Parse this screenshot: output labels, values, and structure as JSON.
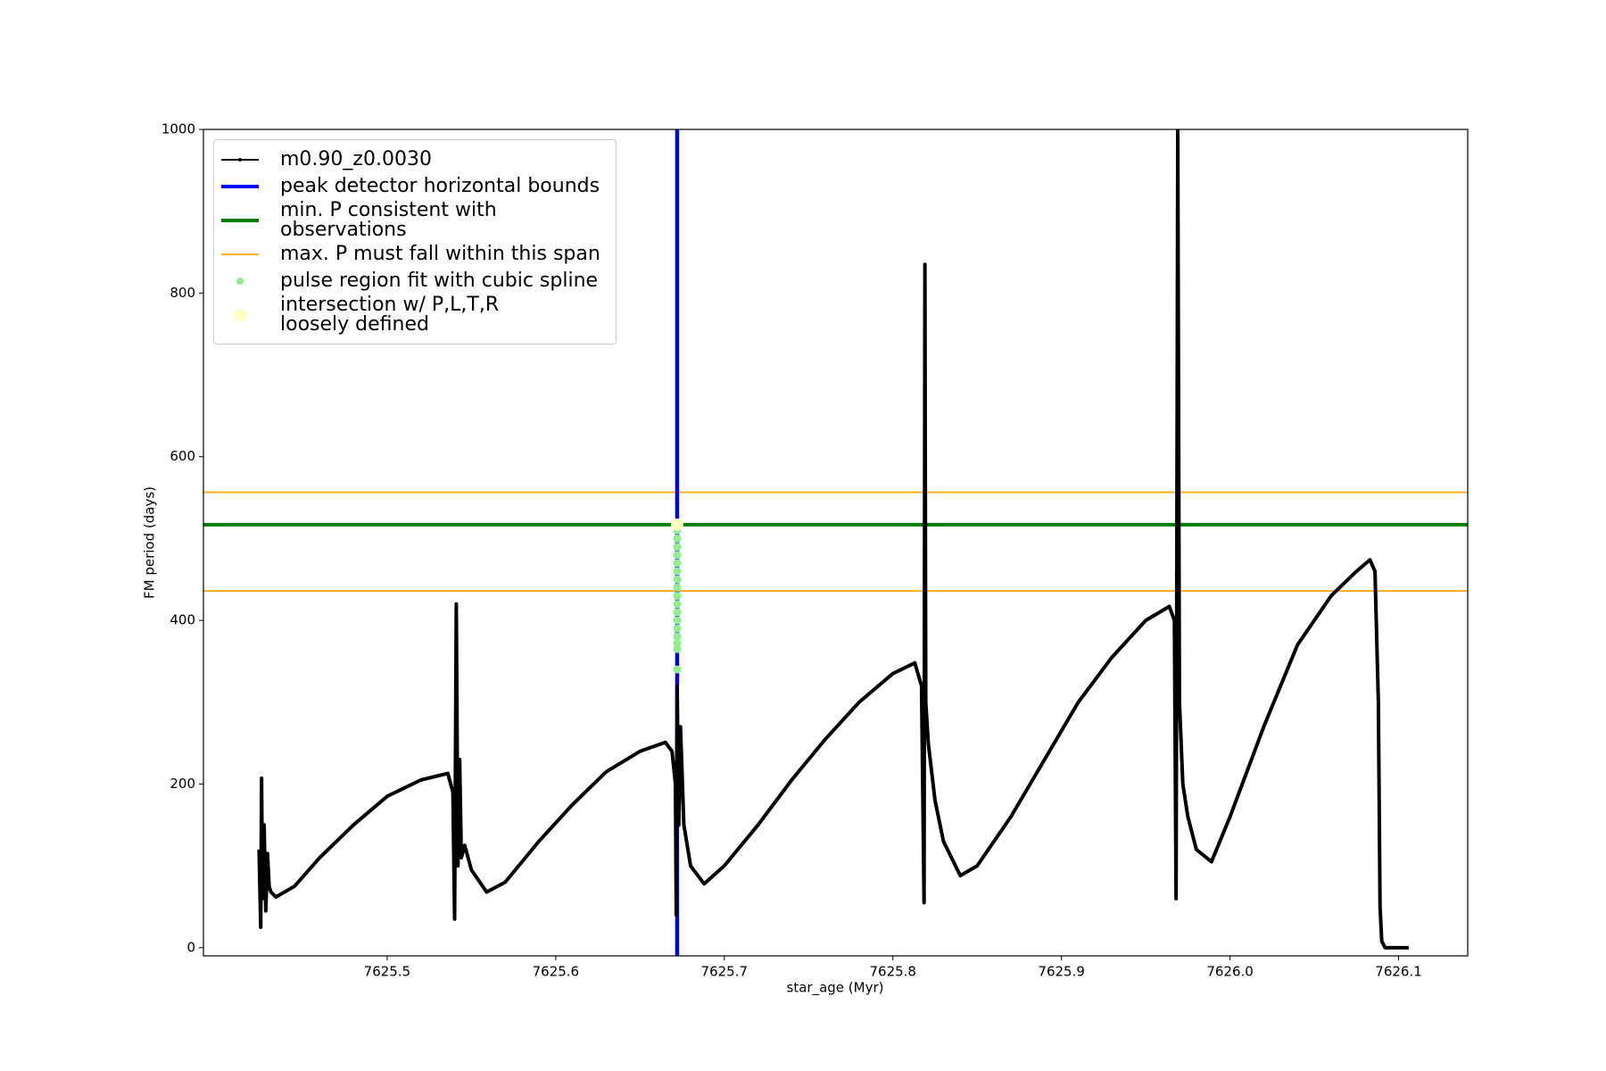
{
  "chart_data": {
    "type": "line",
    "x_label": "star_age (Myr)",
    "y_label": "FM period (days)",
    "xlim": [
      7625.391,
      7626.141
    ],
    "ylim": [
      -10,
      1000
    ],
    "xticks": [
      7625.5,
      7625.6,
      7625.7,
      7625.8,
      7625.9,
      {
        "value": 7626.0,
        "label": "7626.0"
      },
      7626.1
    ],
    "yticks": [
      0,
      200,
      400,
      600,
      800,
      1000
    ],
    "grid": false,
    "legend": "upper left",
    "series": [
      {
        "name": "m0.90_z0.0030",
        "type": "line",
        "color": "#000000",
        "x": [
          7625.424,
          7625.425,
          7625.4255,
          7625.426,
          7625.427,
          7625.428,
          7625.429,
          7625.43,
          7625.431,
          7625.434,
          7625.445,
          7625.46,
          7625.48,
          7625.5,
          7625.52,
          7625.536,
          7625.539,
          7625.54,
          7625.541,
          7625.542,
          7625.543,
          7625.544,
          7625.546,
          7625.55,
          7625.559,
          7625.57,
          7625.59,
          7625.61,
          7625.63,
          7625.65,
          7625.665,
          7625.669,
          7625.671,
          7625.6715,
          7625.672,
          7625.673,
          7625.674,
          7625.676,
          7625.68,
          7625.688,
          7625.7,
          7625.72,
          7625.74,
          7625.76,
          7625.78,
          7625.8,
          7625.813,
          7625.817,
          7625.8185,
          7625.819,
          7625.8195,
          7625.821,
          7625.825,
          7625.83,
          7625.84,
          7625.85,
          7625.87,
          7625.89,
          7625.91,
          7625.93,
          7625.95,
          7625.964,
          7625.967,
          7625.968,
          7625.969,
          7625.97,
          7625.972,
          7625.975,
          7625.98,
          7625.989,
          7626.0,
          7626.02,
          7626.04,
          7626.06,
          7626.075,
          7626.083,
          7626.086,
          7626.088,
          7626.089,
          7626.09,
          7626.092,
          7626.1,
          7626.106
        ],
        "values": [
          120,
          25,
          207,
          60,
          150,
          45,
          115,
          75,
          68,
          62,
          75,
          110,
          150,
          185,
          205,
          213,
          190,
          35,
          420,
          100,
          230,
          110,
          125,
          95,
          68,
          80,
          130,
          175,
          215,
          240,
          251,
          240,
          200,
          40,
          320,
          150,
          270,
          150,
          100,
          78,
          100,
          150,
          205,
          255,
          300,
          335,
          348,
          320,
          55,
          835,
          300,
          250,
          180,
          130,
          88,
          100,
          160,
          230,
          300,
          355,
          400,
          417,
          400,
          60,
          1000,
          300,
          200,
          160,
          120,
          105,
          160,
          270,
          370,
          430,
          460,
          474,
          460,
          300,
          50,
          8,
          0,
          0,
          0
        ]
      },
      {
        "name": "peak detector horizontal bounds",
        "type": "vline",
        "color": "#0000ff",
        "x": [
          7625.6715,
          7625.6725
        ]
      },
      {
        "name": "min. P consistent with observations",
        "type": "hline",
        "color": "#008000",
        "values": [
          517
        ]
      },
      {
        "name": "max. P must fall within this span",
        "type": "hline",
        "color": "#ffa500",
        "values": [
          436,
          556.5
        ]
      },
      {
        "name": "pulse region fit with cubic spline",
        "type": "scatter",
        "color": "#90ee90",
        "x": [
          7625.672,
          7625.672,
          7625.672,
          7625.672,
          7625.672,
          7625.672,
          7625.672,
          7625.672,
          7625.672,
          7625.672,
          7625.672,
          7625.672,
          7625.672,
          7625.672,
          7625.672,
          7625.672,
          7625.672,
          7625.672
        ],
        "values": [
          340,
          365,
          372,
          380,
          390,
          400,
          410,
          420,
          430,
          440,
          450,
          460,
          470,
          480,
          490,
          500,
          510,
          517
        ]
      },
      {
        "name": "intersection w/ P,L,T,R\nloosely defined",
        "type": "scatter",
        "color": "#ffffc0",
        "size": "large",
        "x": [
          7625.672
        ],
        "values": [
          517
        ]
      }
    ]
  }
}
